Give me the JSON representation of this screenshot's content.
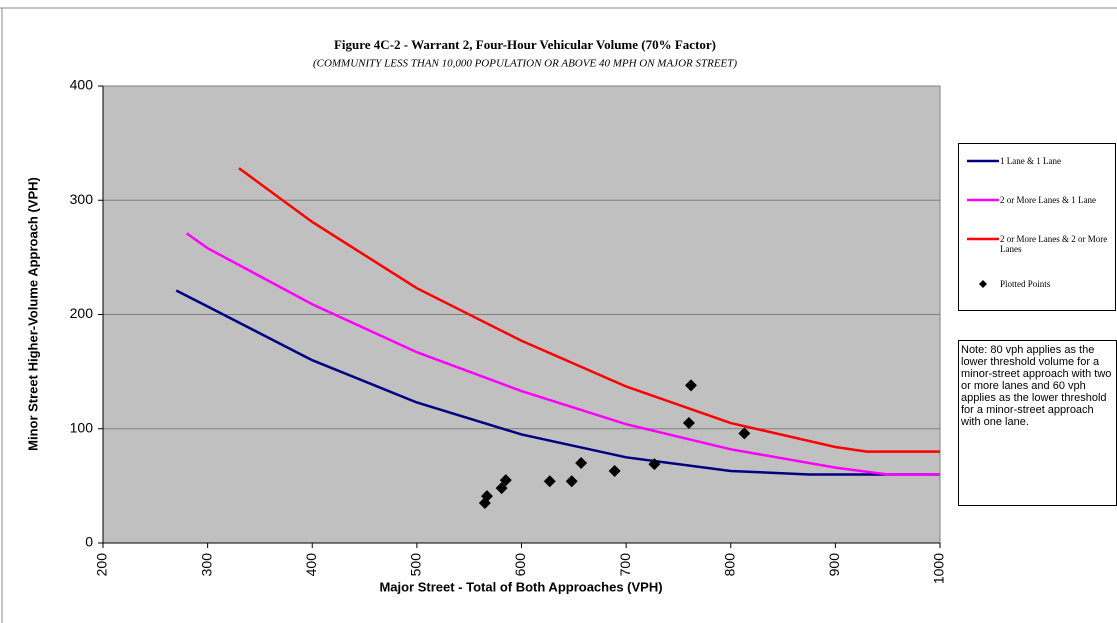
{
  "chart_data": {
    "type": "line",
    "title": "Figure 4C-2 - Warrant 2, Four-Hour Vehicular Volume (70% Factor)",
    "subtitle": "(COMMUNITY LESS THAN 10,000 POPULATION OR ABOVE 40 MPH ON MAJOR STREET)",
    "x_label": "Major Street - Total of Both Approaches (VPH)",
    "y_label": "Minor Street Higher-Volume Approach (VPH)",
    "xlim": [
      200,
      1000
    ],
    "xticks": [
      200,
      300,
      400,
      500,
      600,
      700,
      800,
      900,
      1000
    ],
    "ylim": [
      0,
      400
    ],
    "yticks": [
      0,
      100,
      200,
      300,
      400
    ],
    "grid": true,
    "legend": "right",
    "note": "Note: 80 vph applies as the lower threshold volume for a minor-street approach with two or more lanes and 60 vph applies as the lower threshold for a minor-street approach with one lane.",
    "series": [
      {
        "name": "1 Lane & 1 Lane",
        "color": "#000080",
        "type": "line",
        "x": [
          270,
          300,
          400,
          500,
          600,
          700,
          800,
          875,
          1000
        ],
        "values": [
          221,
          207,
          160,
          123,
          95,
          75,
          63,
          60,
          60
        ]
      },
      {
        "name": "2 or More Lanes & 1 Lane",
        "color": "#ff00ff",
        "type": "line",
        "x": [
          280,
          300,
          400,
          500,
          600,
          700,
          800,
          900,
          950,
          1000
        ],
        "values": [
          271,
          258,
          209,
          167,
          133,
          104,
          82,
          66,
          60,
          60
        ]
      },
      {
        "name": "2 or More Lanes & 2 or More Lanes",
        "color": "#ff0000",
        "type": "line",
        "x": [
          330,
          400,
          500,
          600,
          700,
          800,
          900,
          930,
          1000
        ],
        "values": [
          328,
          281,
          223,
          177,
          137,
          105,
          84,
          80,
          80
        ]
      },
      {
        "name": "Plotted Points",
        "color": "#000000",
        "type": "scatter",
        "x": [
          565,
          567,
          581,
          585,
          627,
          648,
          657,
          689,
          727,
          760,
          762,
          813
        ],
        "values": [
          35,
          41,
          48,
          55,
          54,
          54,
          70,
          63,
          69,
          105,
          138,
          96
        ]
      }
    ]
  }
}
